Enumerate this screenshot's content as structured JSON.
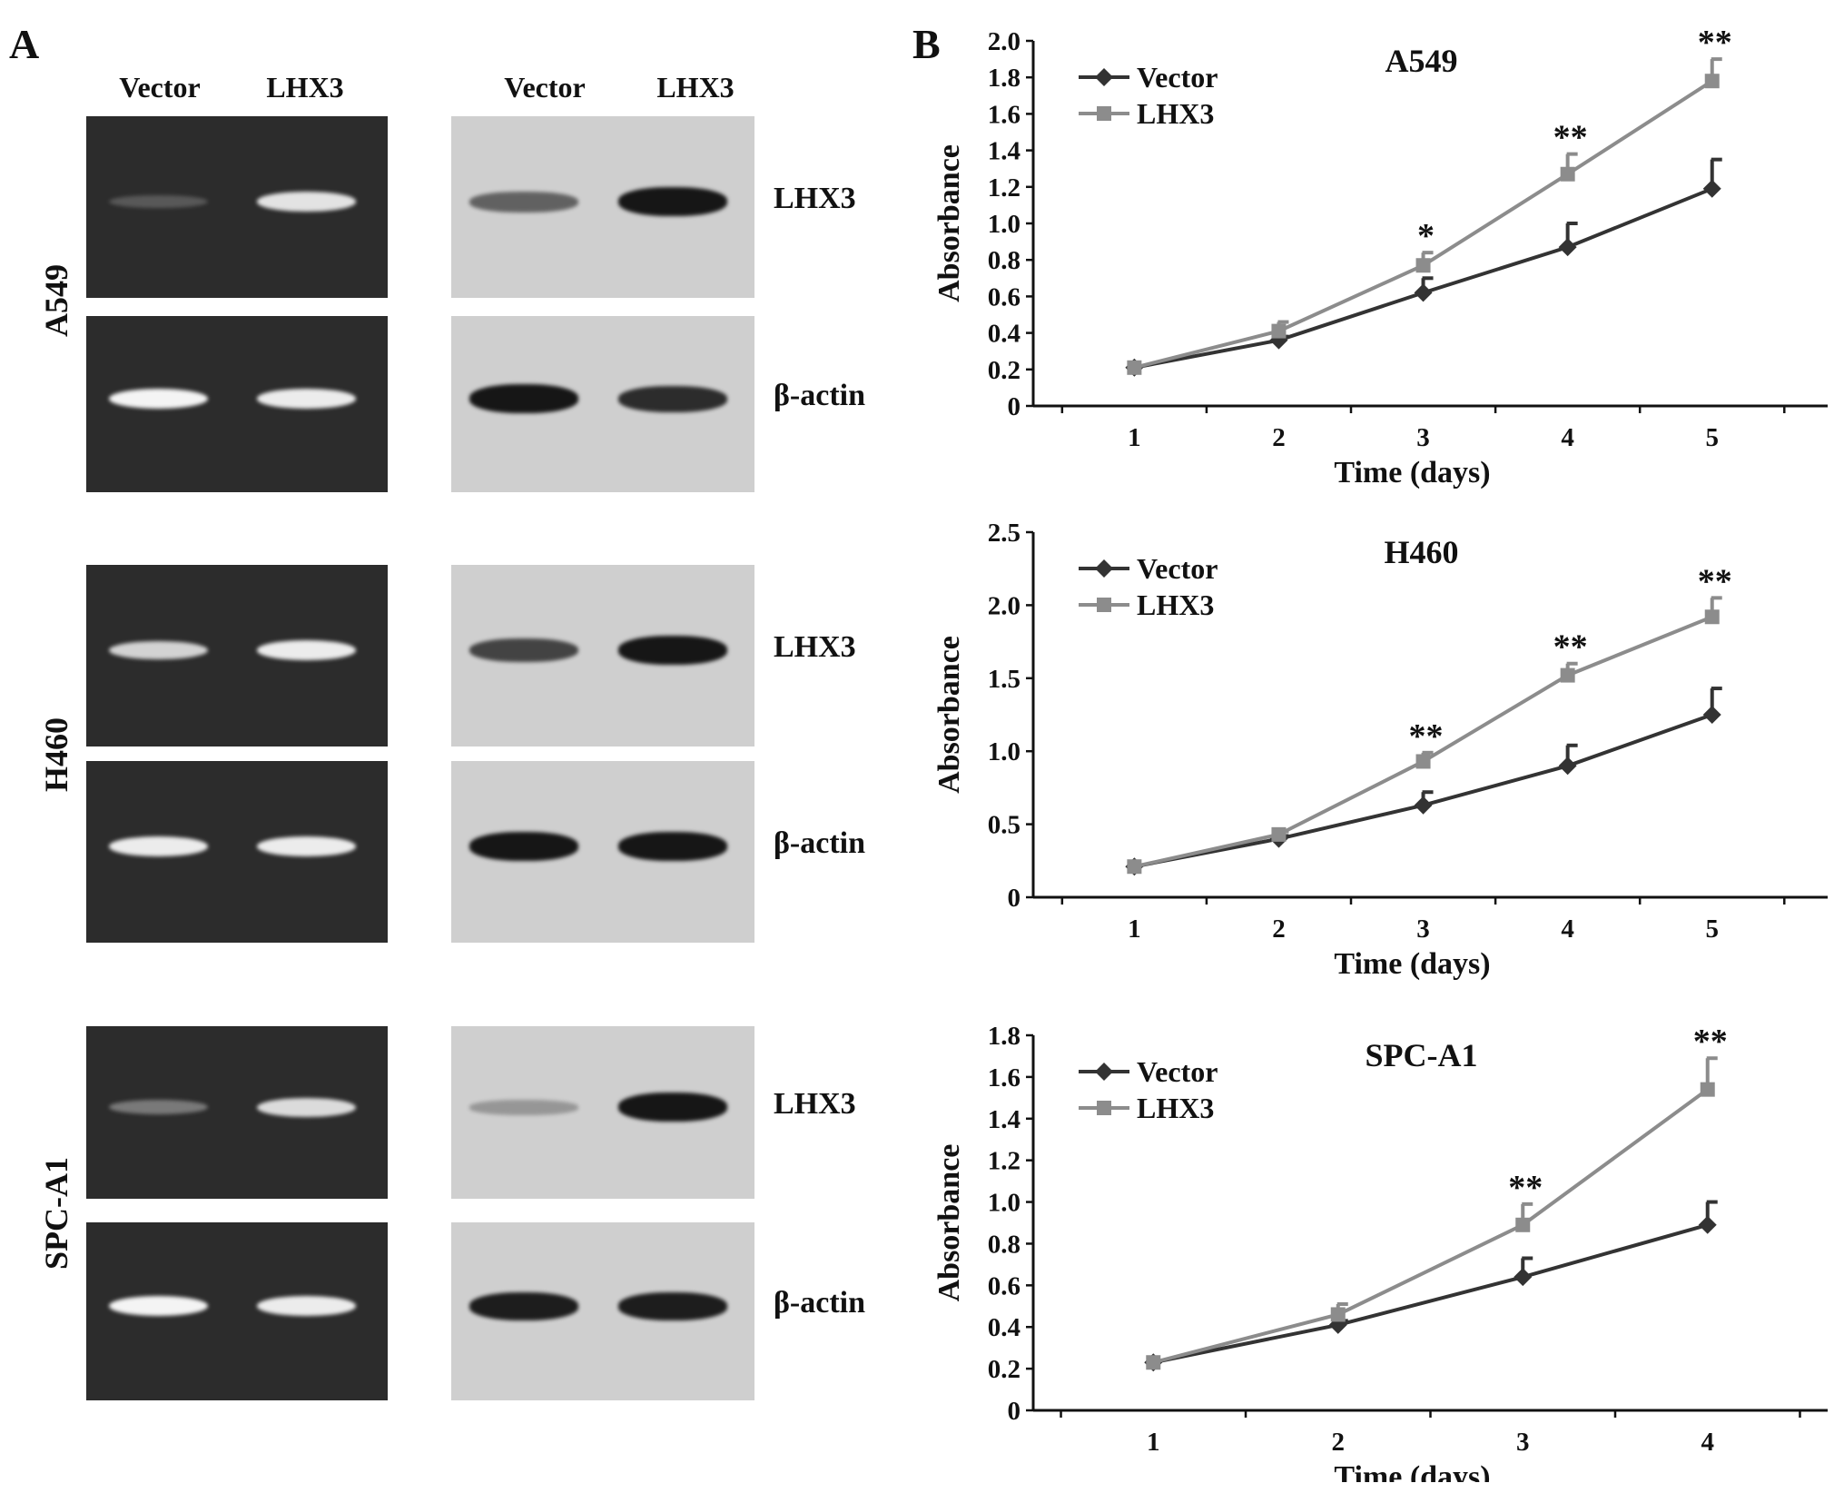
{
  "panels": {
    "a_letter": "A",
    "b_letter": "B"
  },
  "lanes": {
    "left_vector": "Vector",
    "left_lhx3": "LHX3",
    "right_vector": "Vector",
    "right_lhx3": "LHX3"
  },
  "blocks": [
    {
      "cell": "A549",
      "target_label": "LHX3",
      "control_label": "β-actin",
      "gel_top": [
        0.05,
        0.9
      ],
      "gel_bottom": [
        1.0,
        0.95
      ],
      "blot_top": [
        0.5,
        1.0
      ],
      "blot_bottom": [
        1.0,
        0.85
      ]
    },
    {
      "cell": "H460",
      "target_label": "LHX3",
      "control_label": "β-actin",
      "gel_top": [
        0.8,
        0.95
      ],
      "gel_bottom": [
        0.95,
        0.95
      ],
      "blot_top": [
        0.7,
        1.0
      ],
      "blot_bottom": [
        1.0,
        1.0
      ]
    },
    {
      "cell": "SPC-A1",
      "target_label": "LHX3",
      "control_label": "β-actin",
      "gel_top": [
        0.25,
        0.85
      ],
      "gel_bottom": [
        1.0,
        0.95
      ],
      "blot_top": [
        0.15,
        1.0
      ],
      "blot_bottom": [
        0.95,
        0.95
      ]
    }
  ],
  "colors": {
    "vector": "#333333",
    "lhx3": "#8c8c8c",
    "gel_bg": "#2c2c2c",
    "blot_bg": "#cfcfcf"
  },
  "chart_data": [
    {
      "type": "line",
      "title": "A549",
      "xlabel": "Time (days)",
      "ylabel": "Absorbance",
      "x": [
        1,
        2,
        3,
        4,
        5
      ],
      "xlim": [
        0.3,
        5.8
      ],
      "ylim": [
        0,
        2.0
      ],
      "yticks": [
        "0",
        "0.2",
        "0.4",
        "0.6",
        "0.8",
        "1.0",
        "1.2",
        "1.4",
        "1.6",
        "1.8",
        "2.0"
      ],
      "ytick_values": [
        0,
        0.2,
        0.4,
        0.6,
        0.8,
        1.0,
        1.2,
        1.4,
        1.6,
        1.8,
        2.0
      ],
      "legend": "top-left",
      "series": [
        {
          "name": "Vector",
          "marker": "diamond",
          "values": [
            0.21,
            0.36,
            0.62,
            0.87,
            1.19
          ],
          "errors": [
            0.01,
            0.02,
            0.08,
            0.13,
            0.16
          ]
        },
        {
          "name": "LHX3",
          "marker": "square",
          "values": [
            0.21,
            0.41,
            0.77,
            1.27,
            1.78
          ],
          "errors": [
            0.01,
            0.05,
            0.07,
            0.11,
            0.12
          ]
        }
      ],
      "annotations": [
        {
          "x": 3,
          "text": "*"
        },
        {
          "x": 4,
          "text": "**"
        },
        {
          "x": 5,
          "text": "**"
        }
      ]
    },
    {
      "type": "line",
      "title": "H460",
      "xlabel": "Time (days)",
      "ylabel": "Absorbance",
      "x": [
        1,
        2,
        3,
        4,
        5
      ],
      "xlim": [
        0.3,
        5.8
      ],
      "ylim": [
        0,
        2.5
      ],
      "yticks": [
        "0",
        "0.5",
        "1.0",
        "1.5",
        "2.0",
        "2.5"
      ],
      "ytick_values": [
        0,
        0.5,
        1.0,
        1.5,
        2.0,
        2.5
      ],
      "legend": "top-left",
      "series": [
        {
          "name": "Vector",
          "marker": "diamond",
          "values": [
            0.21,
            0.4,
            0.63,
            0.9,
            1.25
          ],
          "errors": [
            0.01,
            0.02,
            0.09,
            0.14,
            0.18
          ]
        },
        {
          "name": "LHX3",
          "marker": "square",
          "values": [
            0.21,
            0.43,
            0.93,
            1.52,
            1.92
          ],
          "errors": [
            0.01,
            0.02,
            0.06,
            0.08,
            0.13
          ]
        }
      ],
      "annotations": [
        {
          "x": 3,
          "text": "**"
        },
        {
          "x": 4,
          "text": "**"
        },
        {
          "x": 5,
          "text": "**"
        }
      ]
    },
    {
      "type": "line",
      "title": "SPC-A1",
      "xlabel": "Time (days)",
      "ylabel": "Absorbance",
      "x": [
        1,
        2,
        3,
        4
      ],
      "xlim": [
        0.35,
        4.65
      ],
      "ylim": [
        0,
        1.8
      ],
      "yticks": [
        "0",
        "0.2",
        "0.4",
        "0.6",
        "0.8",
        "1.0",
        "1.2",
        "1.4",
        "1.6",
        "1.8"
      ],
      "ytick_values": [
        0,
        0.2,
        0.4,
        0.6,
        0.8,
        1.0,
        1.2,
        1.4,
        1.6,
        1.8
      ],
      "legend": "top-left",
      "series": [
        {
          "name": "Vector",
          "marker": "diamond",
          "values": [
            0.23,
            0.41,
            0.64,
            0.89
          ],
          "errors": [
            0.01,
            0.02,
            0.09,
            0.11
          ]
        },
        {
          "name": "LHX3",
          "marker": "square",
          "values": [
            0.23,
            0.46,
            0.89,
            1.54
          ],
          "errors": [
            0.01,
            0.05,
            0.1,
            0.15
          ]
        }
      ],
      "annotations": [
        {
          "x": 3,
          "text": "**"
        },
        {
          "x": 4,
          "text": "**"
        }
      ]
    }
  ]
}
